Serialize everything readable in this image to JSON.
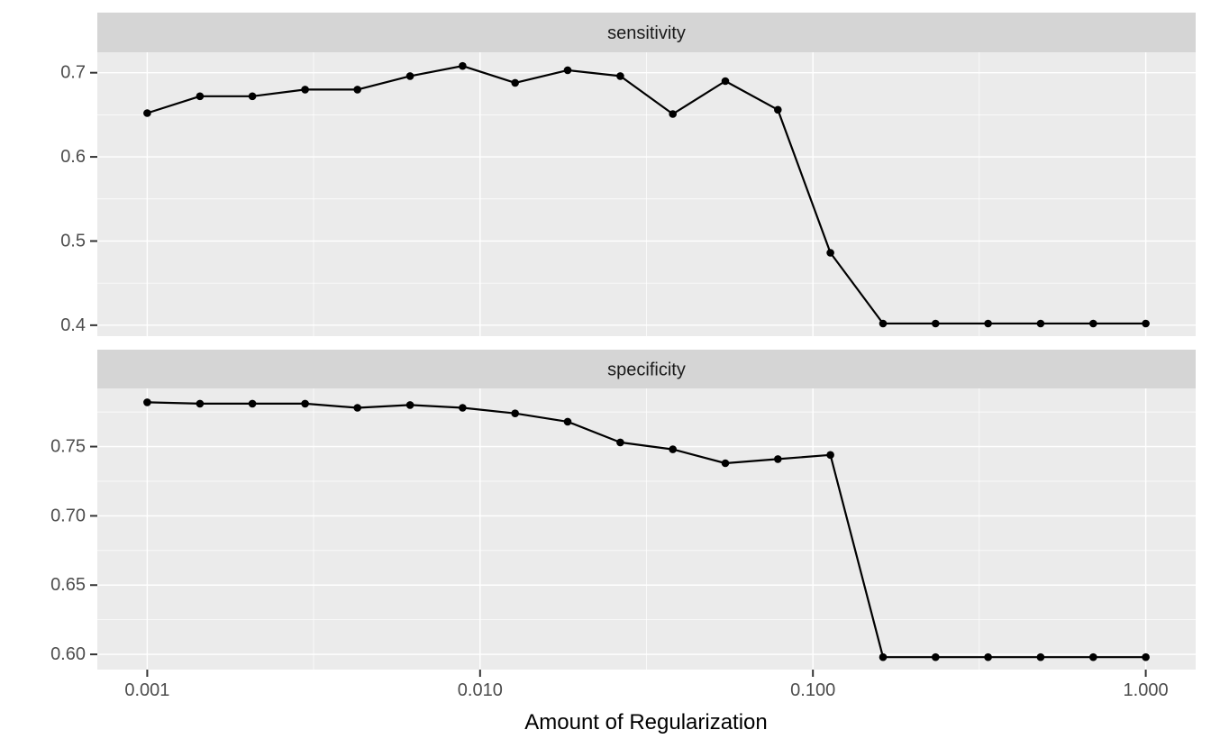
{
  "chart_data": {
    "type": "line",
    "xlabel": "Amount of Regularization",
    "x_scale": "log10",
    "xlim_log10": [
      -3.15,
      0.15
    ],
    "grid": true,
    "legend": false,
    "x": [
      0.001,
      0.00144,
      0.00207,
      0.00298,
      0.00428,
      0.00616,
      0.00886,
      0.01274,
      0.01833,
      0.02637,
      0.03793,
      0.05456,
      0.07848,
      0.11288,
      0.16238,
      0.23357,
      0.33598,
      0.48329,
      0.69519,
      1.0
    ],
    "xticks": [
      0.001,
      0.01,
      0.1,
      1.0
    ],
    "xtick_labels": [
      "0.001",
      "0.010",
      "0.100",
      "1.000"
    ],
    "xminor": [
      0.00316,
      0.0316,
      0.316
    ],
    "facets": [
      {
        "label": "sensitivity",
        "ylim": [
          0.387,
          0.7243
        ],
        "yticks": [
          0.4,
          0.5,
          0.6,
          0.7
        ],
        "ytick_labels": [
          "0.4",
          "0.5",
          "0.6",
          "0.7"
        ],
        "yminor": [
          0.45,
          0.55,
          0.65
        ],
        "values": [
          0.652,
          0.672,
          0.672,
          0.68,
          0.68,
          0.696,
          0.708,
          0.688,
          0.703,
          0.696,
          0.651,
          0.69,
          0.656,
          0.486,
          0.402,
          0.402,
          0.402,
          0.402,
          0.402,
          0.402
        ]
      },
      {
        "label": "specificity",
        "ylim": [
          0.589,
          0.792
        ],
        "yticks": [
          0.6,
          0.65,
          0.7,
          0.75
        ],
        "ytick_labels": [
          "0.60",
          "0.65",
          "0.70",
          "0.75"
        ],
        "yminor": [
          0.625,
          0.675,
          0.725,
          0.775
        ],
        "values": [
          0.782,
          0.781,
          0.781,
          0.781,
          0.778,
          0.78,
          0.778,
          0.774,
          0.768,
          0.753,
          0.748,
          0.738,
          0.741,
          0.744,
          0.598,
          0.598,
          0.598,
          0.598,
          0.598,
          0.598
        ]
      }
    ],
    "colors": {
      "panel_bg": "#EBEBEB",
      "strip_bg": "#D5D5D5",
      "grid": "#FFFFFF",
      "series": "#000000",
      "axis_text": "#4D4D4D",
      "strip_text": "#1A1A1A",
      "axis_title": "#000000",
      "tick_mark": "#333333"
    }
  }
}
